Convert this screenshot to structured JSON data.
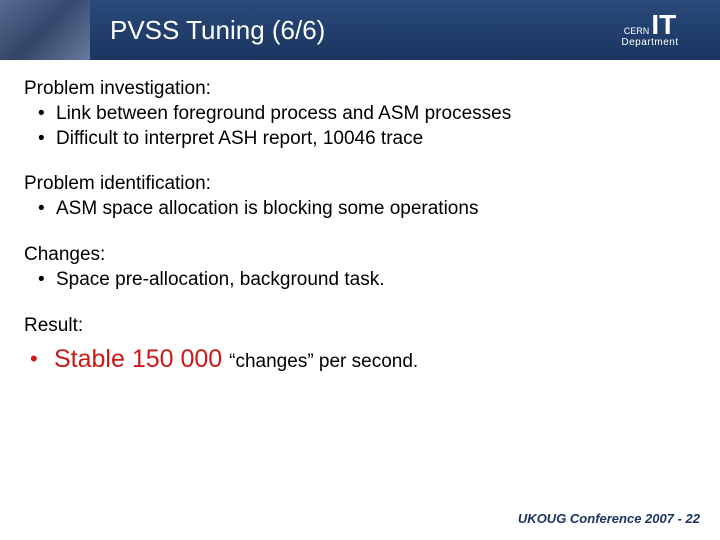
{
  "header": {
    "title": "PVSS Tuning (6/6)",
    "logo": {
      "cern": "CERN",
      "it": "IT",
      "department": "Department"
    }
  },
  "sections": {
    "investigation": {
      "heading": "Problem investigation:",
      "items": [
        "Link between foreground process and ASM processes",
        "Difficult to interpret ASH report, 10046 trace"
      ]
    },
    "identification": {
      "heading": "Problem identification:",
      "items": [
        "ASM space allocation is blocking some operations"
      ]
    },
    "changes": {
      "heading": "Changes:",
      "items": [
        "Space pre-allocation, background task."
      ]
    },
    "result": {
      "heading": "Result:",
      "highlight": "Stable 150 000 ",
      "rest": "“changes” per second."
    }
  },
  "footer": "UKOUG Conference 2007 - 22",
  "colors": {
    "header_bg": "#1a3560",
    "accent_red": "#cc1818",
    "text": "#000000"
  }
}
